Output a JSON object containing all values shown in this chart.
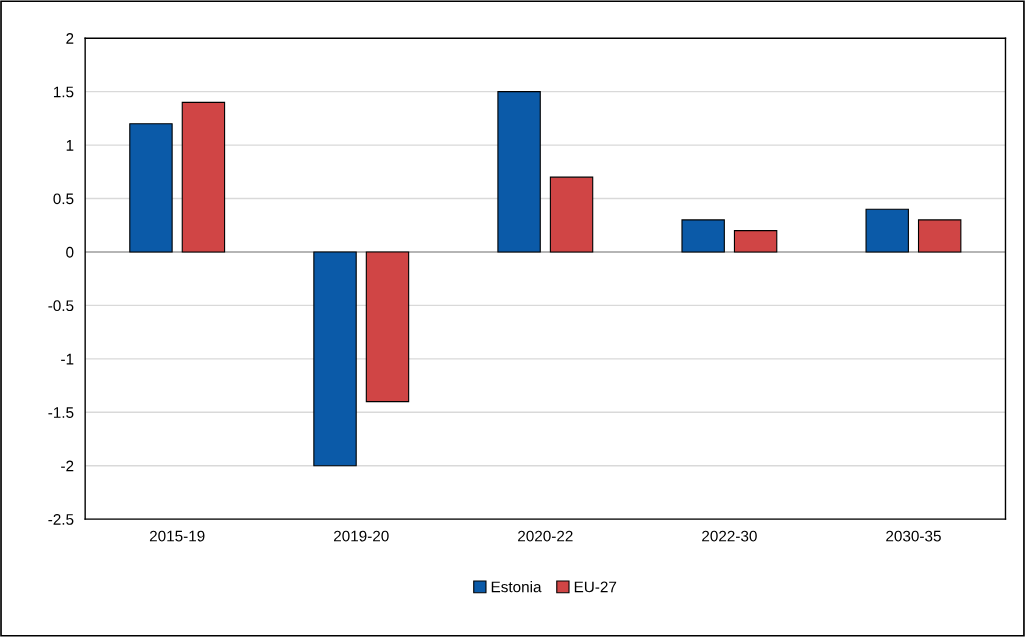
{
  "chart_data": {
    "type": "bar",
    "categories": [
      "2015-19",
      "2019-20",
      "2020-22",
      "2022-30",
      "2030-35"
    ],
    "series": [
      {
        "name": "Estonia",
        "color": "#0b5aa8",
        "values": [
          1.2,
          -2,
          1.5,
          0.3,
          0.4
        ]
      },
      {
        "name": "EU-27",
        "color": "#d04545",
        "values": [
          1.4,
          -1.4,
          0.7,
          0.2,
          0.3
        ]
      }
    ],
    "ylim": [
      -2.5,
      2
    ],
    "yticks": [
      -2.5,
      -2,
      -1.5,
      -1,
      -0.5,
      0,
      0.5,
      1,
      1.5,
      2
    ],
    "grid": "y",
    "legend": "bottom"
  }
}
